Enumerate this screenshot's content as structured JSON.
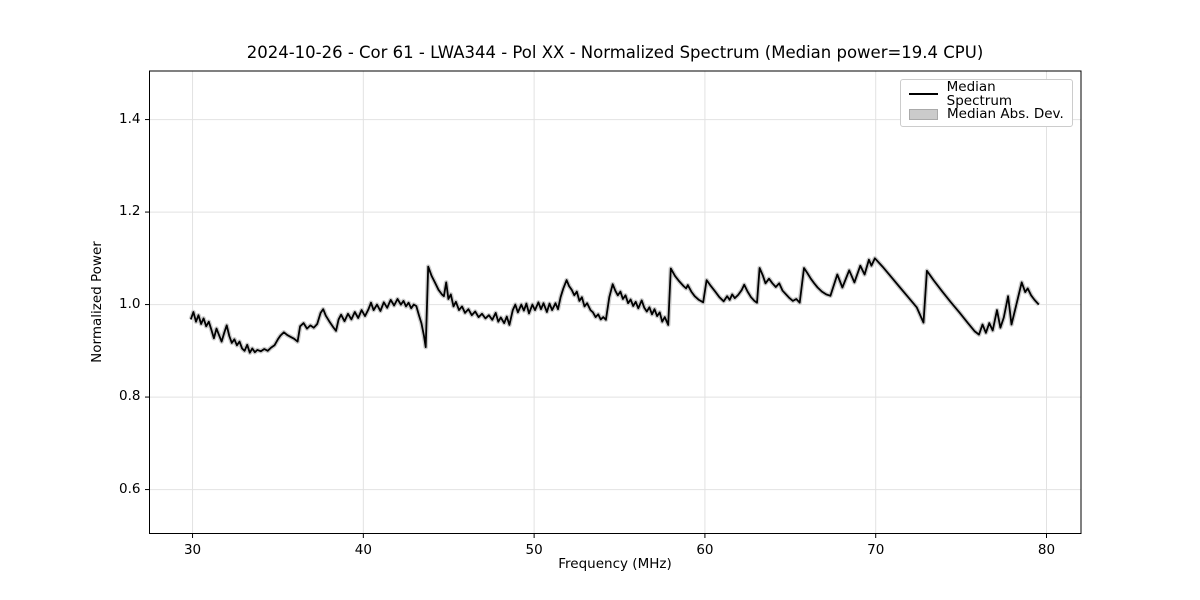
{
  "colors": {
    "line": "#000000",
    "band": "#cccccc",
    "grid": "#e2e2e2",
    "spine": "#000000",
    "tick": "#000000",
    "background": "#ffffff",
    "legend_border": "#cccccc",
    "legend_patch_fill": "#cbcbcb",
    "legend_patch_edge": "#aaaaaa"
  },
  "chart_data": {
    "type": "line",
    "title": "2024-10-26 - Cor 61 - LWA344 - Pol XX - Normalized Spectrum (Median power=19.4 CPU)",
    "xlabel": "Frequency (MHz)",
    "ylabel": "Normalized Power",
    "xlim": [
      27.48,
      82.02
    ],
    "ylim": [
      0.505,
      1.505
    ],
    "x_ticks": [
      "30",
      "40",
      "50",
      "60",
      "70",
      "80"
    ],
    "x_tick_values": [
      30,
      40,
      50,
      60,
      70,
      80
    ],
    "y_ticks": [
      "0.6",
      "0.8",
      "1.0",
      "1.2",
      "1.4"
    ],
    "y_tick_values": [
      0.6,
      0.8,
      1.0,
      1.2,
      1.4
    ],
    "grid": true,
    "legend": {
      "position": "upper right",
      "entries": [
        {
          "label": "Median Spectrum",
          "type": "line",
          "color": "#000000"
        },
        {
          "label": "Median Abs. Dev.",
          "type": "patch",
          "color": "#cbcbcb"
        }
      ]
    },
    "series": [
      {
        "name": "Median Spectrum",
        "color": "#000000",
        "points": [
          [
            29.9,
            0.968
          ],
          [
            30.05,
            0.984
          ],
          [
            30.2,
            0.963
          ],
          [
            30.35,
            0.977
          ],
          [
            30.5,
            0.958
          ],
          [
            30.65,
            0.97
          ],
          [
            30.8,
            0.953
          ],
          [
            30.95,
            0.963
          ],
          [
            31.1,
            0.946
          ],
          [
            31.25,
            0.927
          ],
          [
            31.4,
            0.948
          ],
          [
            31.55,
            0.934
          ],
          [
            31.7,
            0.92
          ],
          [
            31.85,
            0.938
          ],
          [
            32.0,
            0.955
          ],
          [
            32.15,
            0.932
          ],
          [
            32.3,
            0.917
          ],
          [
            32.45,
            0.925
          ],
          [
            32.6,
            0.912
          ],
          [
            32.75,
            0.92
          ],
          [
            32.9,
            0.905
          ],
          [
            33.05,
            0.9
          ],
          [
            33.2,
            0.913
          ],
          [
            33.35,
            0.896
          ],
          [
            33.5,
            0.905
          ],
          [
            33.65,
            0.897
          ],
          [
            33.8,
            0.902
          ],
          [
            34.0,
            0.899
          ],
          [
            34.2,
            0.904
          ],
          [
            34.4,
            0.9
          ],
          [
            34.6,
            0.907
          ],
          [
            34.8,
            0.912
          ],
          [
            35.0,
            0.925
          ],
          [
            35.15,
            0.933
          ],
          [
            35.35,
            0.94
          ],
          [
            35.55,
            0.934
          ],
          [
            35.75,
            0.93
          ],
          [
            35.95,
            0.926
          ],
          [
            36.15,
            0.92
          ],
          [
            36.3,
            0.953
          ],
          [
            36.5,
            0.96
          ],
          [
            36.7,
            0.948
          ],
          [
            36.9,
            0.955
          ],
          [
            37.1,
            0.95
          ],
          [
            37.3,
            0.958
          ],
          [
            37.5,
            0.982
          ],
          [
            37.65,
            0.99
          ],
          [
            37.8,
            0.976
          ],
          [
            38.0,
            0.964
          ],
          [
            38.2,
            0.953
          ],
          [
            38.4,
            0.943
          ],
          [
            38.55,
            0.968
          ],
          [
            38.7,
            0.978
          ],
          [
            38.9,
            0.964
          ],
          [
            39.1,
            0.98
          ],
          [
            39.3,
            0.968
          ],
          [
            39.5,
            0.984
          ],
          [
            39.7,
            0.971
          ],
          [
            39.9,
            0.988
          ],
          [
            40.1,
            0.975
          ],
          [
            40.3,
            0.99
          ],
          [
            40.45,
            1.004
          ],
          [
            40.6,
            0.988
          ],
          [
            40.8,
            1.0
          ],
          [
            41.0,
            0.986
          ],
          [
            41.2,
            1.005
          ],
          [
            41.4,
            0.993
          ],
          [
            41.6,
            1.01
          ],
          [
            41.8,
            0.998
          ],
          [
            42.0,
            1.012
          ],
          [
            42.2,
            1.0
          ],
          [
            42.35,
            1.008
          ],
          [
            42.5,
            0.996
          ],
          [
            42.65,
            1.004
          ],
          [
            42.8,
            0.992
          ],
          [
            42.95,
            1.0
          ],
          [
            43.1,
            0.997
          ],
          [
            43.25,
            0.978
          ],
          [
            43.4,
            0.96
          ],
          [
            43.55,
            0.932
          ],
          [
            43.65,
            0.908
          ],
          [
            43.8,
            1.082
          ],
          [
            44.0,
            1.062
          ],
          [
            44.2,
            1.047
          ],
          [
            44.4,
            1.032
          ],
          [
            44.6,
            1.022
          ],
          [
            44.72,
            1.018
          ],
          [
            44.85,
            1.048
          ],
          [
            44.98,
            1.012
          ],
          [
            45.12,
            1.022
          ],
          [
            45.28,
            0.996
          ],
          [
            45.42,
            1.006
          ],
          [
            45.6,
            0.988
          ],
          [
            45.78,
            0.996
          ],
          [
            45.95,
            0.982
          ],
          [
            46.15,
            0.99
          ],
          [
            46.35,
            0.977
          ],
          [
            46.55,
            0.985
          ],
          [
            46.75,
            0.973
          ],
          [
            46.95,
            0.98
          ],
          [
            47.15,
            0.97
          ],
          [
            47.35,
            0.977
          ],
          [
            47.55,
            0.967
          ],
          [
            47.75,
            0.982
          ],
          [
            47.9,
            0.963
          ],
          [
            48.05,
            0.972
          ],
          [
            48.25,
            0.96
          ],
          [
            48.4,
            0.974
          ],
          [
            48.55,
            0.956
          ],
          [
            48.75,
            0.988
          ],
          [
            48.9,
            1.0
          ],
          [
            49.05,
            0.983
          ],
          [
            49.25,
            1.0
          ],
          [
            49.4,
            0.987
          ],
          [
            49.55,
            1.002
          ],
          [
            49.7,
            0.981
          ],
          [
            49.9,
            1.0
          ],
          [
            50.05,
            0.988
          ],
          [
            50.25,
            1.005
          ],
          [
            50.4,
            0.99
          ],
          [
            50.55,
            1.003
          ],
          [
            50.75,
            0.984
          ],
          [
            50.9,
            1.002
          ],
          [
            51.05,
            0.988
          ],
          [
            51.25,
            1.003
          ],
          [
            51.4,
            0.99
          ],
          [
            51.55,
            1.016
          ],
          [
            51.7,
            1.034
          ],
          [
            51.9,
            1.053
          ],
          [
            52.05,
            1.04
          ],
          [
            52.2,
            1.032
          ],
          [
            52.35,
            1.02
          ],
          [
            52.5,
            1.028
          ],
          [
            52.65,
            1.008
          ],
          [
            52.8,
            1.016
          ],
          [
            52.95,
            0.996
          ],
          [
            53.1,
            1.003
          ],
          [
            53.3,
            0.988
          ],
          [
            53.45,
            0.983
          ],
          [
            53.6,
            0.973
          ],
          [
            53.75,
            0.979
          ],
          [
            53.9,
            0.968
          ],
          [
            54.05,
            0.973
          ],
          [
            54.2,
            0.967
          ],
          [
            54.4,
            1.016
          ],
          [
            54.6,
            1.044
          ],
          [
            54.75,
            1.03
          ],
          [
            54.9,
            1.02
          ],
          [
            55.05,
            1.028
          ],
          [
            55.2,
            1.012
          ],
          [
            55.35,
            1.02
          ],
          [
            55.5,
            1.003
          ],
          [
            55.65,
            1.011
          ],
          [
            55.8,
            0.997
          ],
          [
            55.95,
            1.006
          ],
          [
            56.1,
            0.992
          ],
          [
            56.3,
            1.009
          ],
          [
            56.45,
            0.993
          ],
          [
            56.6,
            0.985
          ],
          [
            56.75,
            0.994
          ],
          [
            56.9,
            0.979
          ],
          [
            57.05,
            0.99
          ],
          [
            57.2,
            0.975
          ],
          [
            57.35,
            0.983
          ],
          [
            57.5,
            0.963
          ],
          [
            57.65,
            0.973
          ],
          [
            57.85,
            0.956
          ],
          [
            58.0,
            1.078
          ],
          [
            58.25,
            1.062
          ],
          [
            58.5,
            1.05
          ],
          [
            58.75,
            1.04
          ],
          [
            58.9,
            1.035
          ],
          [
            59.0,
            1.042
          ],
          [
            59.2,
            1.028
          ],
          [
            59.4,
            1.018
          ],
          [
            59.65,
            1.01
          ],
          [
            59.9,
            1.005
          ],
          [
            60.1,
            1.053
          ],
          [
            60.35,
            1.04
          ],
          [
            60.6,
            1.028
          ],
          [
            60.85,
            1.016
          ],
          [
            61.1,
            1.007
          ],
          [
            61.3,
            1.018
          ],
          [
            61.45,
            1.01
          ],
          [
            61.6,
            1.022
          ],
          [
            61.75,
            1.014
          ],
          [
            61.95,
            1.021
          ],
          [
            62.15,
            1.031
          ],
          [
            62.3,
            1.043
          ],
          [
            62.5,
            1.028
          ],
          [
            62.7,
            1.016
          ],
          [
            62.9,
            1.008
          ],
          [
            63.05,
            1.004
          ],
          [
            63.2,
            1.079
          ],
          [
            63.4,
            1.062
          ],
          [
            63.55,
            1.046
          ],
          [
            63.75,
            1.056
          ],
          [
            63.95,
            1.046
          ],
          [
            64.15,
            1.038
          ],
          [
            64.35,
            1.046
          ],
          [
            64.55,
            1.03
          ],
          [
            64.75,
            1.022
          ],
          [
            64.95,
            1.014
          ],
          [
            65.15,
            1.008
          ],
          [
            65.35,
            1.012
          ],
          [
            65.55,
            1.004
          ],
          [
            65.8,
            1.079
          ],
          [
            66.0,
            1.068
          ],
          [
            66.2,
            1.056
          ],
          [
            66.4,
            1.046
          ],
          [
            66.6,
            1.037
          ],
          [
            66.85,
            1.028
          ],
          [
            67.1,
            1.022
          ],
          [
            67.35,
            1.019
          ],
          [
            67.75,
            1.065
          ],
          [
            68.05,
            1.037
          ],
          [
            68.45,
            1.074
          ],
          [
            68.75,
            1.048
          ],
          [
            69.1,
            1.084
          ],
          [
            69.35,
            1.065
          ],
          [
            69.6,
            1.097
          ],
          [
            69.75,
            1.084
          ],
          [
            69.95,
            1.1
          ],
          [
            70.4,
            1.082
          ],
          [
            70.9,
            1.06
          ],
          [
            71.4,
            1.038
          ],
          [
            71.9,
            1.016
          ],
          [
            72.4,
            0.994
          ],
          [
            72.8,
            0.961
          ],
          [
            73.0,
            1.073
          ],
          [
            73.4,
            1.052
          ],
          [
            73.9,
            1.028
          ],
          [
            74.4,
            1.005
          ],
          [
            74.9,
            0.983
          ],
          [
            75.4,
            0.96
          ],
          [
            75.8,
            0.942
          ],
          [
            76.05,
            0.935
          ],
          [
            76.25,
            0.957
          ],
          [
            76.45,
            0.939
          ],
          [
            76.65,
            0.96
          ],
          [
            76.85,
            0.944
          ],
          [
            77.1,
            0.988
          ],
          [
            77.3,
            0.95
          ],
          [
            77.5,
            0.972
          ],
          [
            77.75,
            1.018
          ],
          [
            77.95,
            0.957
          ],
          [
            78.2,
            0.995
          ],
          [
            78.55,
            1.048
          ],
          [
            78.75,
            1.027
          ],
          [
            78.9,
            1.035
          ],
          [
            79.1,
            1.02
          ],
          [
            79.3,
            1.01
          ],
          [
            79.55,
            1.0
          ]
        ]
      },
      {
        "name": "Median Abs. Dev.",
        "color": "#cccccc",
        "note": "thin band hidden behind median line",
        "follows": "Median Spectrum"
      }
    ]
  }
}
